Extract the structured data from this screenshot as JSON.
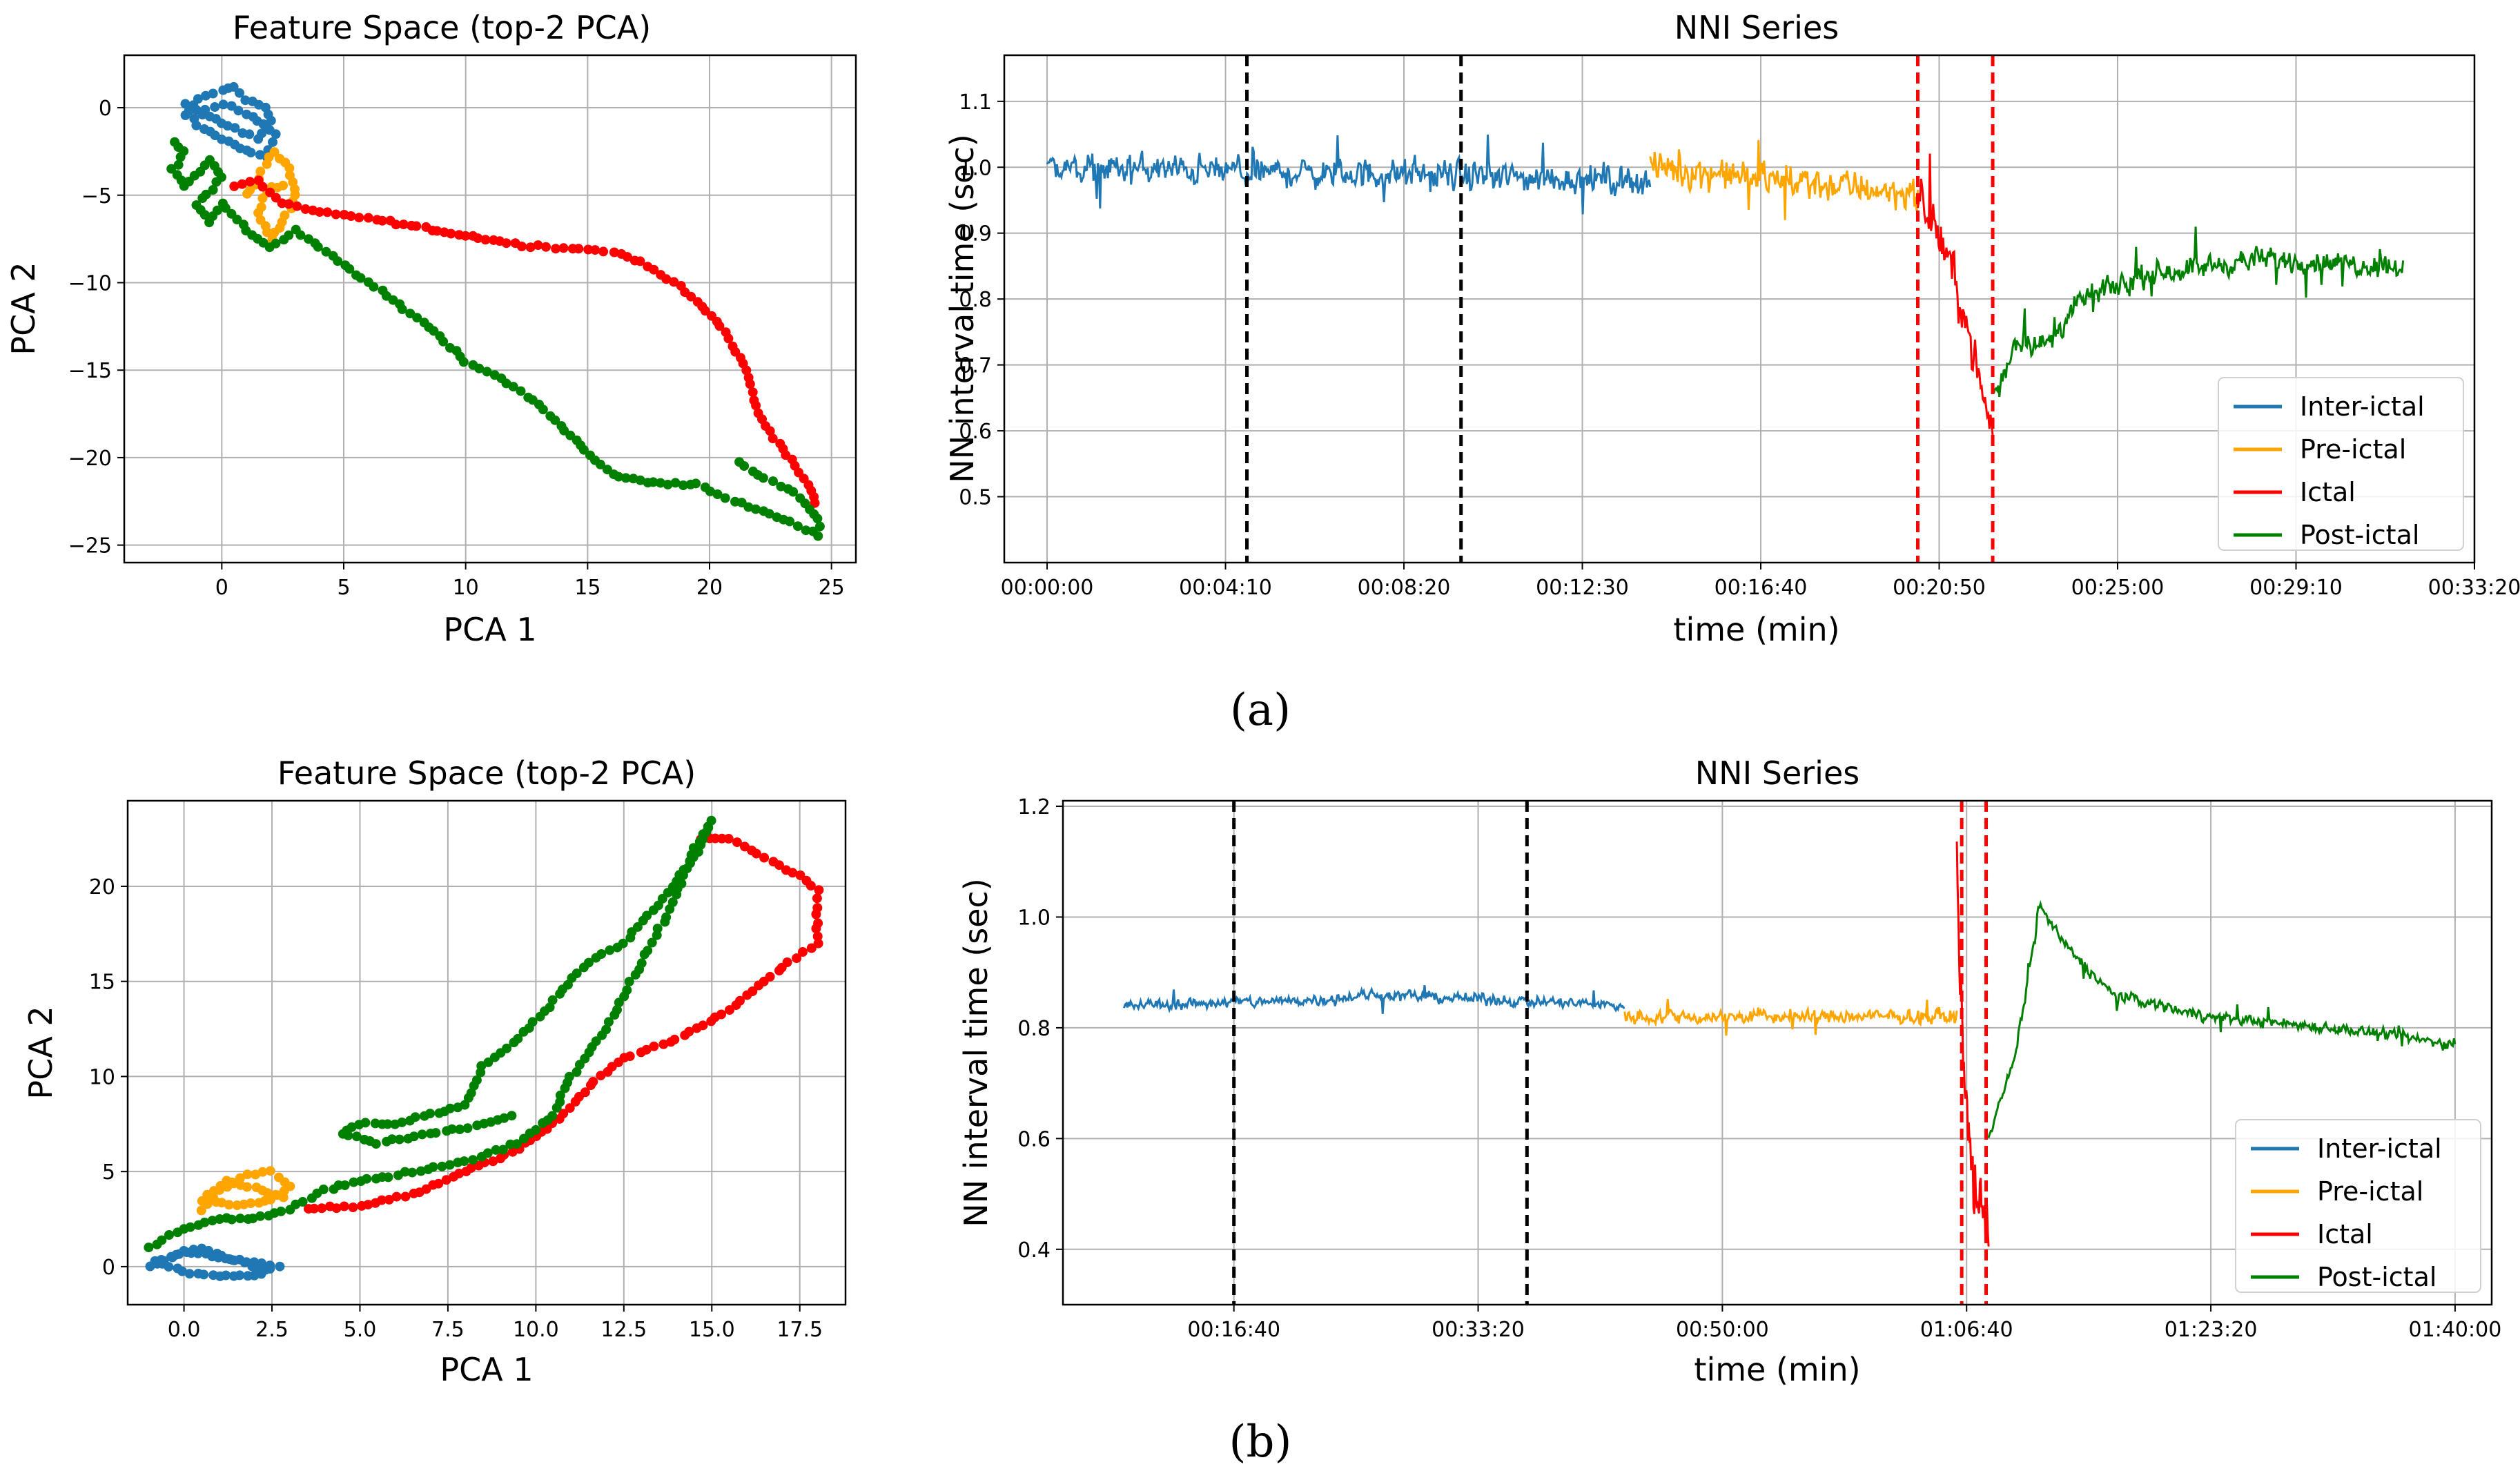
{
  "figure": {
    "label_a": "(a)",
    "label_b": "(b)"
  },
  "colors": {
    "interictal": "#1f77b4",
    "preictal": "#ffa500",
    "ictal": "#ff0000",
    "postictal": "#008000",
    "grid": "#b0b0b0",
    "seg_marker_black": "#000000",
    "seg_marker_red": "#ff0000"
  },
  "chart_data": [
    {
      "id": "a_pca",
      "type": "scatter",
      "title": "Feature Space (top-2 PCA)",
      "xlabel": "PCA 1",
      "ylabel": "PCA 2",
      "xlim": [
        -4,
        26
      ],
      "ylim": [
        -26,
        3
      ],
      "xticks": [
        0,
        5,
        10,
        15,
        20,
        25
      ],
      "xtick_labels": [
        "0",
        "5",
        "10",
        "15",
        "20",
        "25"
      ],
      "yticks": [
        0,
        -5,
        -10,
        -15,
        -20,
        -25
      ],
      "ytick_labels": [
        "0",
        "−5",
        "−10",
        "−15",
        "−20",
        "−25"
      ],
      "grid": true,
      "series": [
        {
          "name": "Inter-ictal",
          "color": "#1f77b4",
          "path": [
            [
              -1.5,
              -0.5
            ],
            [
              -1,
              0.5
            ],
            [
              0,
              1
            ],
            [
              0.5,
              1.2
            ],
            [
              1,
              0.5
            ],
            [
              1.8,
              0
            ],
            [
              2,
              -0.8
            ],
            [
              1.5,
              -1.8
            ],
            [
              0.5,
              -1.2
            ],
            [
              -0.5,
              -0.5
            ],
            [
              -1.5,
              0.2
            ],
            [
              -1,
              -1
            ],
            [
              0,
              -1.8
            ],
            [
              1,
              -2.5
            ],
            [
              1.8,
              -2.8
            ],
            [
              2.2,
              -1.5
            ],
            [
              1,
              -0.3
            ],
            [
              0,
              0.2
            ],
            [
              -1,
              -0.2
            ]
          ]
        },
        {
          "name": "Pre-ictal",
          "color": "#ffa500",
          "path": [
            [
              1,
              -5
            ],
            [
              1.5,
              -4
            ],
            [
              2.2,
              -2.5
            ],
            [
              2.8,
              -3.5
            ],
            [
              3,
              -5
            ],
            [
              2.5,
              -6.5
            ],
            [
              2,
              -7.5
            ],
            [
              1.5,
              -6
            ],
            [
              2,
              -4.5
            ],
            [
              2.8,
              -4.5
            ]
          ]
        },
        {
          "name": "Ictal",
          "color": "#ff0000",
          "path": [
            [
              0.5,
              -4.5
            ],
            [
              1.5,
              -4.2
            ],
            [
              2.5,
              -5.5
            ],
            [
              4,
              -6
            ],
            [
              6,
              -6.3
            ],
            [
              8,
              -6.8
            ],
            [
              10,
              -7.3
            ],
            [
              12,
              -7.8
            ],
            [
              14,
              -8
            ],
            [
              16,
              -8.2
            ],
            [
              17.5,
              -9
            ],
            [
              19,
              -10.5
            ],
            [
              20.5,
              -12.5
            ],
            [
              21.5,
              -15
            ],
            [
              22,
              -17.5
            ],
            [
              23,
              -19.5
            ],
            [
              24,
              -21.5
            ],
            [
              24.5,
              -23
            ]
          ]
        },
        {
          "name": "Post-ictal",
          "color": "#008000",
          "path": [
            [
              -2,
              -2
            ],
            [
              -1.5,
              -2.5
            ],
            [
              -2,
              -3.5
            ],
            [
              -1.5,
              -4.5
            ],
            [
              -0.5,
              -3
            ],
            [
              0,
              -4
            ],
            [
              -1,
              -5.5
            ],
            [
              -0.5,
              -6.5
            ],
            [
              0,
              -5.5
            ],
            [
              1,
              -7
            ],
            [
              2,
              -8
            ],
            [
              3,
              -7
            ],
            [
              4,
              -8
            ],
            [
              5.5,
              -9.5
            ],
            [
              7,
              -11
            ],
            [
              8.5,
              -12.5
            ],
            [
              10,
              -14.5
            ],
            [
              11.5,
              -15.5
            ],
            [
              13,
              -17
            ],
            [
              14.5,
              -19
            ],
            [
              16,
              -21
            ],
            [
              18,
              -21.5
            ],
            [
              19.5,
              -21.5
            ],
            [
              21,
              -22.5
            ],
            [
              23,
              -23.5
            ],
            [
              24.5,
              -24.5
            ],
            [
              24.5,
              -23.5
            ],
            [
              23.5,
              -22
            ],
            [
              22,
              -21
            ],
            [
              21,
              -20
            ]
          ]
        }
      ]
    },
    {
      "id": "a_nni",
      "type": "line",
      "title": "NNI Series",
      "xlabel": "time (min)",
      "ylabel": "NN interval time (sec)",
      "x_unit": "seconds",
      "xlim": [
        -60,
        2000
      ],
      "ylim": [
        0.4,
        1.17
      ],
      "xticks": [
        0,
        250,
        500,
        750,
        1000,
        1250,
        1500,
        1750,
        2000
      ],
      "xtick_labels": [
        "00:00:00",
        "00:04:10",
        "00:08:20",
        "00:12:30",
        "00:16:40",
        "00:20:50",
        "00:25:00",
        "00:29:10",
        "00:33:20"
      ],
      "yticks": [
        0.5,
        0.6,
        0.7,
        0.8,
        0.9,
        1.0,
        1.1
      ],
      "ytick_labels": [
        "0.5",
        "0.6",
        "0.7",
        "0.8",
        "0.9",
        "1.0",
        "1.1"
      ],
      "grid": true,
      "legend": [
        "Inter-ictal",
        "Pre-ictal",
        "Ictal",
        "Post-ictal"
      ],
      "legend_position": "lower-right",
      "markers": [
        {
          "x": 280,
          "color": "#000000"
        },
        {
          "x": 580,
          "color": "#000000"
        },
        {
          "x": 1220,
          "color": "#ff0000"
        },
        {
          "x": 1325,
          "color": "#ff0000"
        }
      ],
      "segments": [
        {
          "name": "Inter-ictal",
          "color": "#1f77b4",
          "start": 0,
          "end": 845,
          "points": [
            [
              0,
              1.0
            ],
            [
              845,
              0.98
            ]
          ],
          "noise": 0.045
        },
        {
          "name": "Pre-ictal",
          "color": "#ffa500",
          "start": 845,
          "end": 1220,
          "points": [
            [
              845,
              1.0
            ],
            [
              1220,
              0.96
            ]
          ],
          "noise": 0.05
        },
        {
          "name": "Ictal",
          "color": "#ff0000",
          "start": 1220,
          "end": 1325,
          "points": [
            [
              1220,
              0.95
            ],
            [
              1250,
              0.9
            ],
            [
              1280,
              0.8
            ],
            [
              1300,
              0.7
            ],
            [
              1325,
              0.6
            ]
          ],
          "noise": 0.07
        },
        {
          "name": "Post-ictal",
          "color": "#008000",
          "start": 1325,
          "end": 1900,
          "points": [
            [
              1325,
              0.65
            ],
            [
              1360,
              0.74
            ],
            [
              1400,
              0.73
            ],
            [
              1450,
              0.8
            ],
            [
              1550,
              0.84
            ],
            [
              1700,
              0.86
            ],
            [
              1900,
              0.85
            ]
          ],
          "noise": 0.035
        }
      ]
    },
    {
      "id": "b_pca",
      "type": "scatter",
      "title": "Feature Space (top-2 PCA)",
      "xlabel": "PCA 1",
      "ylabel": "PCA 2",
      "xlim": [
        -1.6,
        18.8
      ],
      "ylim": [
        -2,
        24.5
      ],
      "xticks": [
        0,
        2.5,
        5,
        7.5,
        10,
        12.5,
        15,
        17.5
      ],
      "xtick_labels": [
        "0.0",
        "2.5",
        "5.0",
        "7.5",
        "10.0",
        "12.5",
        "15.0",
        "17.5"
      ],
      "yticks": [
        0,
        5,
        10,
        15,
        20
      ],
      "ytick_labels": [
        "0",
        "5",
        "10",
        "15",
        "20"
      ],
      "grid": true,
      "series": [
        {
          "name": "Inter-ictal",
          "color": "#1f77b4",
          "path": [
            [
              -1,
              0
            ],
            [
              0,
              0.8
            ],
            [
              1,
              0.5
            ],
            [
              2,
              0.2
            ],
            [
              2.7,
              0
            ],
            [
              2,
              -0.5
            ],
            [
              1,
              -0.5
            ],
            [
              0,
              -0.3
            ],
            [
              -0.8,
              0.3
            ],
            [
              0.5,
              1
            ],
            [
              1.5,
              0.3
            ],
            [
              2.5,
              -0.3
            ]
          ]
        },
        {
          "name": "Pre-ictal",
          "color": "#ffa500",
          "path": [
            [
              0.5,
              3
            ],
            [
              1,
              4
            ],
            [
              1.8,
              4.8
            ],
            [
              2.5,
              5
            ],
            [
              3,
              4.2
            ],
            [
              2.5,
              3.5
            ],
            [
              1.5,
              3.2
            ],
            [
              0.5,
              3.5
            ],
            [
              1.2,
              4.5
            ],
            [
              2.2,
              4
            ],
            [
              3,
              3.5
            ]
          ]
        },
        {
          "name": "Ictal",
          "color": "#ff0000",
          "path": [
            [
              3.5,
              3
            ],
            [
              5,
              3.2
            ],
            [
              6.5,
              3.8
            ],
            [
              8,
              5
            ],
            [
              9.5,
              6.2
            ],
            [
              10.5,
              7.5
            ],
            [
              11.5,
              9.5
            ],
            [
              12.5,
              11
            ],
            [
              14,
              12
            ],
            [
              15.5,
              13.5
            ],
            [
              16.5,
              15
            ],
            [
              17.2,
              16
            ],
            [
              18,
              17
            ],
            [
              18,
              18.5
            ],
            [
              18,
              19.8
            ],
            [
              17.5,
              20.5
            ],
            [
              16.5,
              21.5
            ],
            [
              15.5,
              22.5
            ],
            [
              14.5,
              22.5
            ]
          ]
        },
        {
          "name": "Post-ictal",
          "color": "#008000",
          "path": [
            [
              -1,
              1
            ],
            [
              0,
              2
            ],
            [
              1,
              2.5
            ],
            [
              2,
              2.5
            ],
            [
              3,
              3
            ],
            [
              4,
              4
            ],
            [
              5,
              4.5
            ],
            [
              6.5,
              5
            ],
            [
              8,
              5.5
            ],
            [
              9.5,
              6.5
            ],
            [
              10.5,
              8
            ],
            [
              11,
              10
            ],
            [
              12,
              12.5
            ],
            [
              13,
              16
            ],
            [
              14,
              19.5
            ],
            [
              14.5,
              22
            ],
            [
              15,
              23.5
            ],
            [
              14.5,
              21.5
            ],
            [
              13.5,
              19
            ],
            [
              12.5,
              17
            ],
            [
              11.5,
              16
            ],
            [
              10.5,
              14
            ],
            [
              9.5,
              12
            ],
            [
              8.5,
              10.5
            ],
            [
              8,
              8.5
            ],
            [
              7,
              8
            ],
            [
              6,
              7.5
            ],
            [
              5,
              7.5
            ],
            [
              4.5,
              7
            ],
            [
              5.5,
              6.5
            ],
            [
              7,
              7
            ],
            [
              8.5,
              7.5
            ],
            [
              9.5,
              8
            ]
          ]
        }
      ]
    },
    {
      "id": "b_nni",
      "type": "line",
      "title": "NNI Series",
      "xlabel": "time (min)",
      "ylabel": "NN interval time (sec)",
      "x_unit": "seconds",
      "xlim": [
        300,
        6150
      ],
      "ylim": [
        0.3,
        1.21
      ],
      "xticks": [
        1000,
        2000,
        3000,
        4000,
        5000,
        6000
      ],
      "xtick_labels": [
        "00:16:40",
        "00:33:20",
        "00:50:00",
        "01:06:40",
        "01:23:20",
        "01:40:00"
      ],
      "yticks": [
        0.4,
        0.6,
        0.8,
        1.0,
        1.2
      ],
      "ytick_labels": [
        "0.4",
        "0.6",
        "0.8",
        "1.0",
        "1.2"
      ],
      "grid": true,
      "legend": [
        "Inter-ictal",
        "Pre-ictal",
        "Ictal",
        "Post-ictal"
      ],
      "legend_position": "lower-right",
      "markers": [
        {
          "x": 1000,
          "color": "#000000"
        },
        {
          "x": 2200,
          "color": "#000000"
        },
        {
          "x": 3980,
          "color": "#ff0000"
        },
        {
          "x": 4080,
          "color": "#ff0000"
        }
      ],
      "segments": [
        {
          "name": "Inter-ictal",
          "color": "#1f77b4",
          "start": 550,
          "end": 2600,
          "points": [
            [
              550,
              0.84
            ],
            [
              1300,
              0.85
            ],
            [
              1600,
              0.86
            ],
            [
              2600,
              0.84
            ]
          ],
          "noise": 0.02
        },
        {
          "name": "Pre-ictal",
          "color": "#ffa500",
          "start": 2600,
          "end": 3960,
          "points": [
            [
              2600,
              0.82
            ],
            [
              3960,
              0.82
            ]
          ],
          "noise": 0.025
        },
        {
          "name": "Ictal",
          "color": "#ff0000",
          "start": 3960,
          "end": 4090,
          "points": [
            [
              3960,
              1.1
            ],
            [
              3990,
              0.7
            ],
            [
              4030,
              0.5
            ],
            [
              4090,
              0.45
            ]
          ],
          "noise": 0.1
        },
        {
          "name": "Post-ictal",
          "color": "#008000",
          "start": 4090,
          "end": 6000,
          "points": [
            [
              4090,
              0.6
            ],
            [
              4200,
              0.75
            ],
            [
              4300,
              1.02
            ],
            [
              4400,
              0.95
            ],
            [
              4600,
              0.86
            ],
            [
              5000,
              0.82
            ],
            [
              5500,
              0.8
            ],
            [
              6000,
              0.77
            ]
          ],
          "noise": 0.02
        }
      ]
    }
  ]
}
